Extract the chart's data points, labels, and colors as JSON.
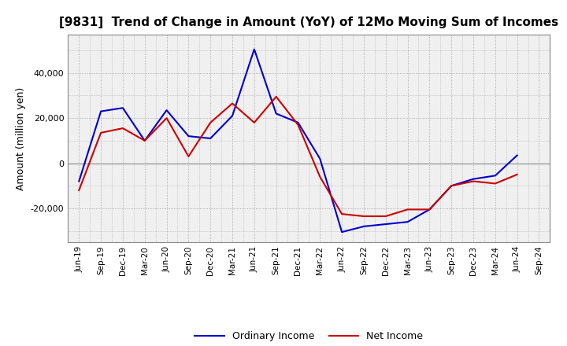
{
  "title": "[9831]  Trend of Change in Amount (YoY) of 12Mo Moving Sum of Incomes",
  "ylabel": "Amount (million yen)",
  "x_labels": [
    "Jun-19",
    "Sep-19",
    "Dec-19",
    "Mar-20",
    "Jun-20",
    "Sep-20",
    "Dec-20",
    "Mar-21",
    "Jun-21",
    "Sep-21",
    "Dec-21",
    "Mar-22",
    "Jun-22",
    "Sep-22",
    "Dec-22",
    "Mar-23",
    "Jun-23",
    "Sep-23",
    "Dec-23",
    "Mar-24",
    "Jun-24",
    "Sep-24"
  ],
  "ordinary_income": [
    -8000,
    23000,
    24500,
    10000,
    23500,
    12000,
    11000,
    21000,
    50500,
    22000,
    18000,
    2000,
    -30500,
    -28000,
    -27000,
    -26000,
    -20500,
    -10000,
    -7000,
    -5500,
    3500,
    null
  ],
  "net_income": [
    -12000,
    13500,
    15500,
    10000,
    20000,
    3000,
    18000,
    26500,
    18000,
    29500,
    17000,
    -6000,
    -22500,
    -23500,
    -23500,
    -20500,
    -20500,
    -10000,
    -8000,
    -9000,
    -5000,
    null
  ],
  "ordinary_color": "#0000cc",
  "net_color": "#cc0000",
  "background_color": "#ffffff",
  "plot_bg_color": "#f0f0f0",
  "grid_color": "#999999",
  "ylim": [
    -35000,
    57000
  ],
  "yticks": [
    -20000,
    0,
    20000,
    40000
  ],
  "line_width": 1.5,
  "title_fontsize": 11,
  "legend_fontsize": 9,
  "tick_fontsize": 7.5
}
